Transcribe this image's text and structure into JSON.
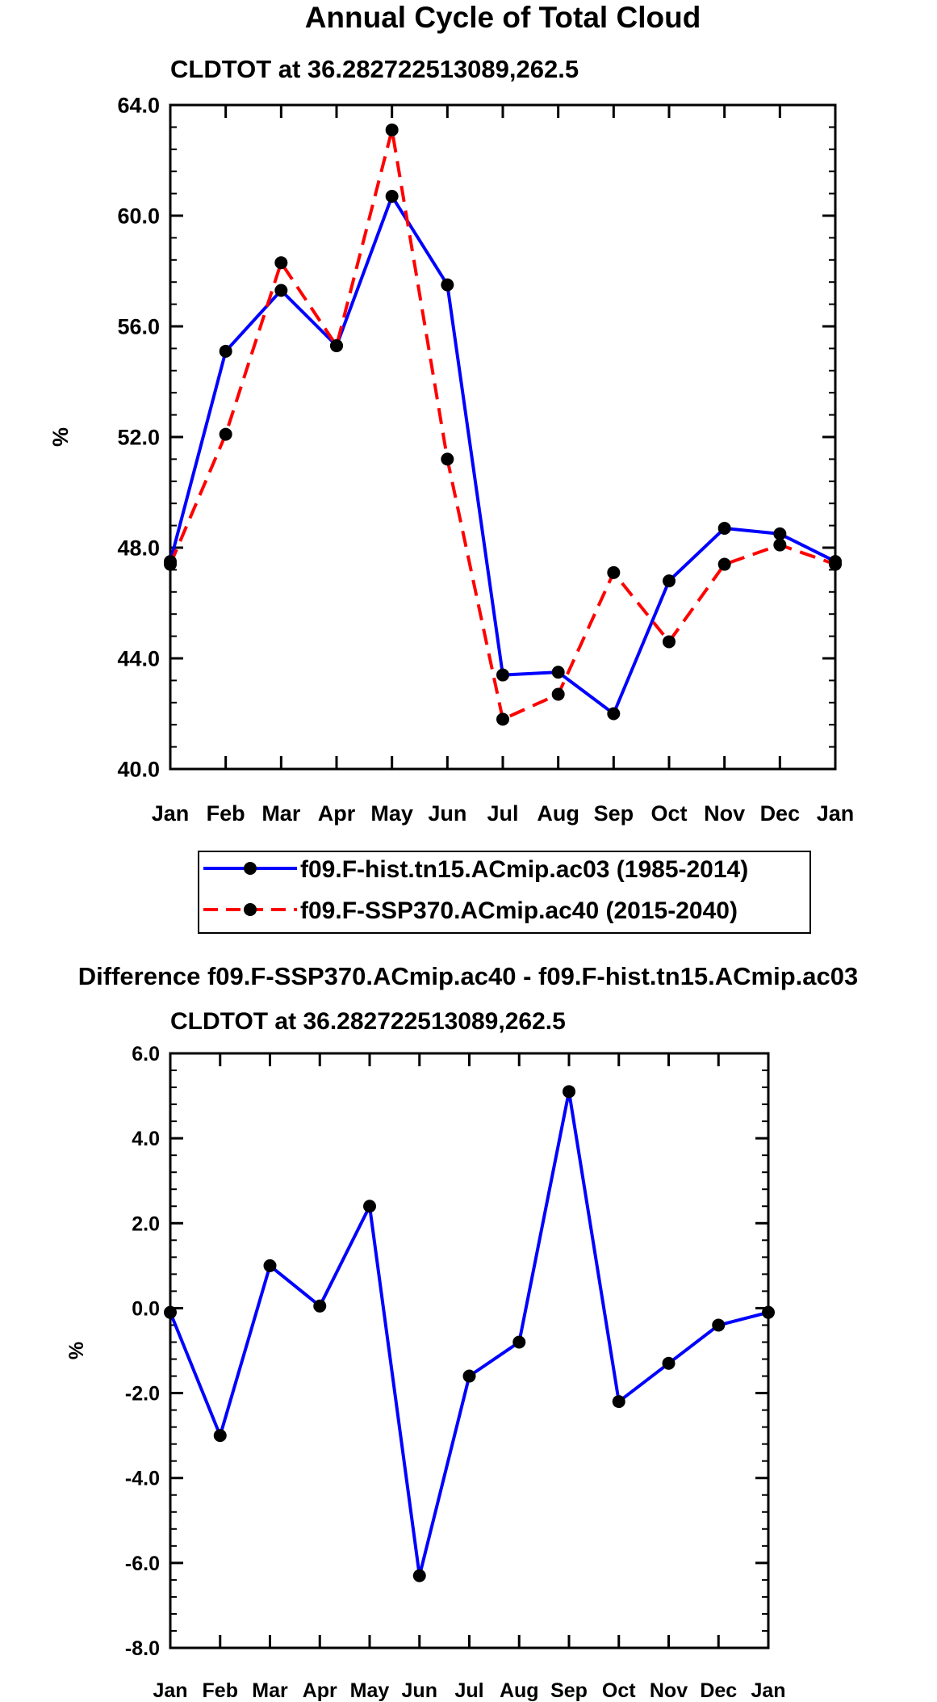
{
  "chart_data": [
    {
      "type": "line",
      "title": "Annual Cycle of Total Cloud",
      "subtitle": "CLDTOT at 36.282722513089,262.5",
      "xlabel": "",
      "ylabel": "%",
      "ylim": [
        40.0,
        64.0
      ],
      "yticks": [
        "40.0",
        "44.0",
        "48.0",
        "52.0",
        "56.0",
        "60.0",
        "64.0"
      ],
      "categories": [
        "Jan",
        "Feb",
        "Mar",
        "Apr",
        "May",
        "Jun",
        "Jul",
        "Aug",
        "Sep",
        "Oct",
        "Nov",
        "Dec",
        "Jan"
      ],
      "series": [
        {
          "name": "f09.F-hist.tn15.ACmip.ac03 (1985-2014)",
          "color": "#0000ff",
          "dash": "solid",
          "values": [
            47.5,
            55.1,
            57.3,
            55.3,
            60.7,
            57.5,
            43.4,
            43.5,
            42.0,
            46.8,
            48.7,
            48.5,
            47.5
          ]
        },
        {
          "name": "f09.F-SSP370.ACmip.ac40 (2015-2040)",
          "color": "#ff0000",
          "dash": "dashed",
          "values": [
            47.4,
            52.1,
            58.3,
            55.3,
            63.1,
            51.2,
            41.8,
            42.7,
            47.1,
            44.6,
            47.4,
            48.1,
            47.4
          ]
        }
      ],
      "legend": "below"
    },
    {
      "type": "line",
      "title": "Difference f09.F-SSP370.ACmip.ac40 - f09.F-hist.tn15.ACmip.ac03",
      "subtitle": "CLDTOT at 36.282722513089,262.5",
      "xlabel": "",
      "ylabel": "%",
      "ylim": [
        -8.0,
        6.0
      ],
      "yticks": [
        "-8.0",
        "-6.0",
        "-4.0",
        "-2.0",
        "0.0",
        "2.0",
        "4.0",
        "6.0"
      ],
      "categories": [
        "Jan",
        "Feb",
        "Mar",
        "Apr",
        "May",
        "Jun",
        "Jul",
        "Aug",
        "Sep",
        "Oct",
        "Nov",
        "Dec",
        "Jan"
      ],
      "series": [
        {
          "name": "Difference",
          "color": "#0000ff",
          "dash": "solid",
          "values": [
            -0.1,
            -3.0,
            1.0,
            0.05,
            2.4,
            -6.3,
            -1.6,
            -0.8,
            5.1,
            -2.2,
            -1.3,
            -0.4,
            -0.1
          ]
        }
      ]
    }
  ]
}
